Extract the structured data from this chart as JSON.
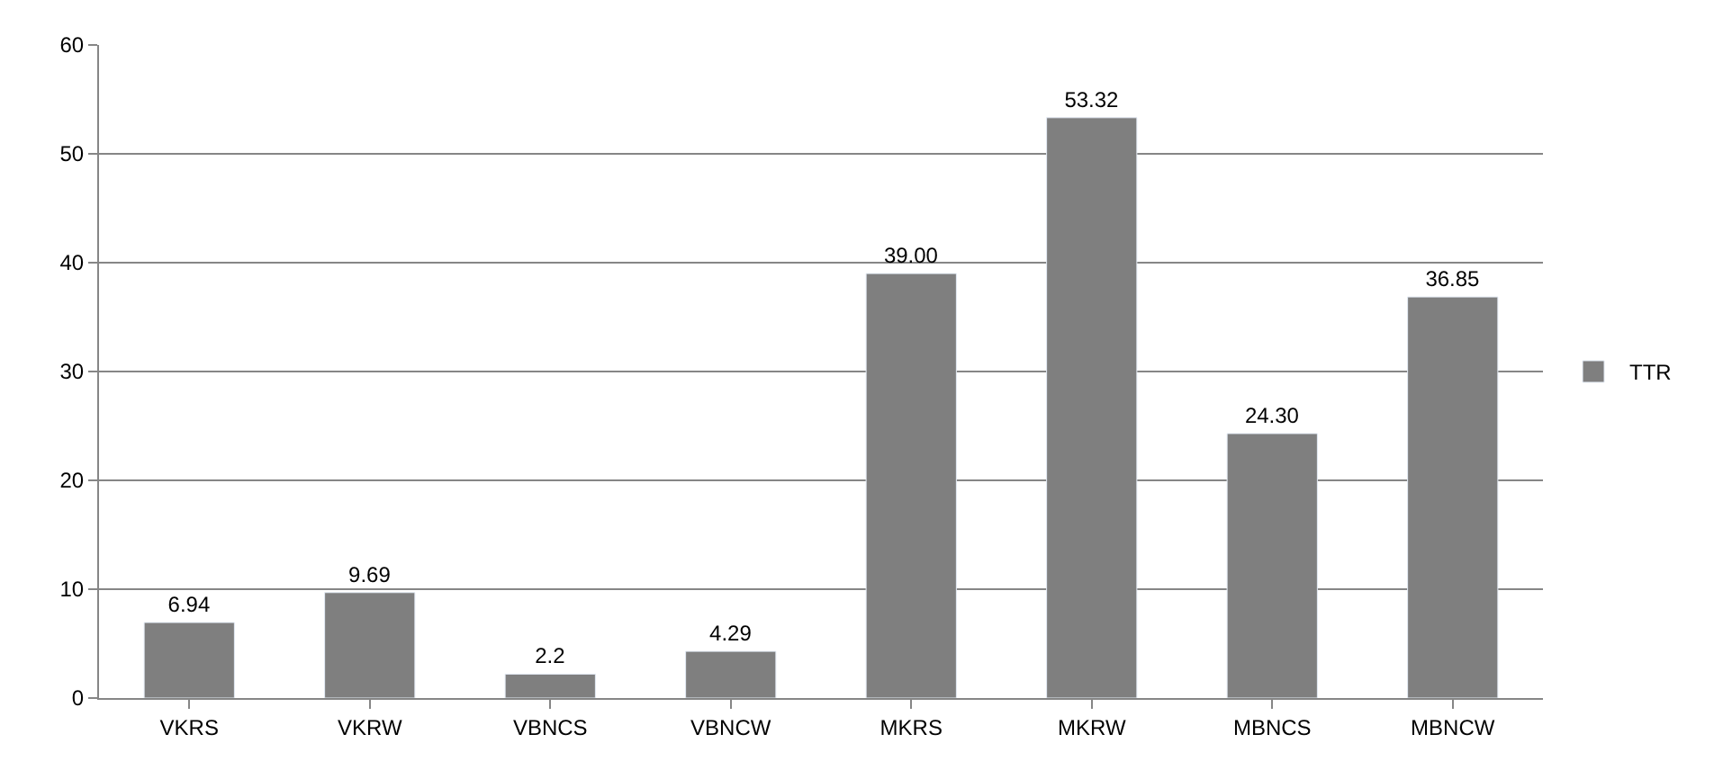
{
  "chart_data": {
    "type": "bar",
    "categories": [
      "VKRS",
      "VKRW",
      "VBNCS",
      "VBNCW",
      "MKRS",
      "MKRW",
      "MBNCS",
      "MBNCW"
    ],
    "series": [
      {
        "name": "TTR",
        "color": "#7f7f7f",
        "values": [
          6.94,
          9.69,
          2.2,
          4.29,
          39.0,
          53.32,
          24.3,
          36.85
        ],
        "value_labels": [
          "6.94",
          "9.69",
          "2.2",
          "4.29",
          "39.00",
          "53.32",
          "24.30",
          "36.85"
        ]
      }
    ],
    "ylim": [
      0,
      60
    ],
    "yticks": [
      0,
      10,
      20,
      30,
      40,
      50,
      60
    ],
    "grid": "y",
    "legend": "right"
  }
}
